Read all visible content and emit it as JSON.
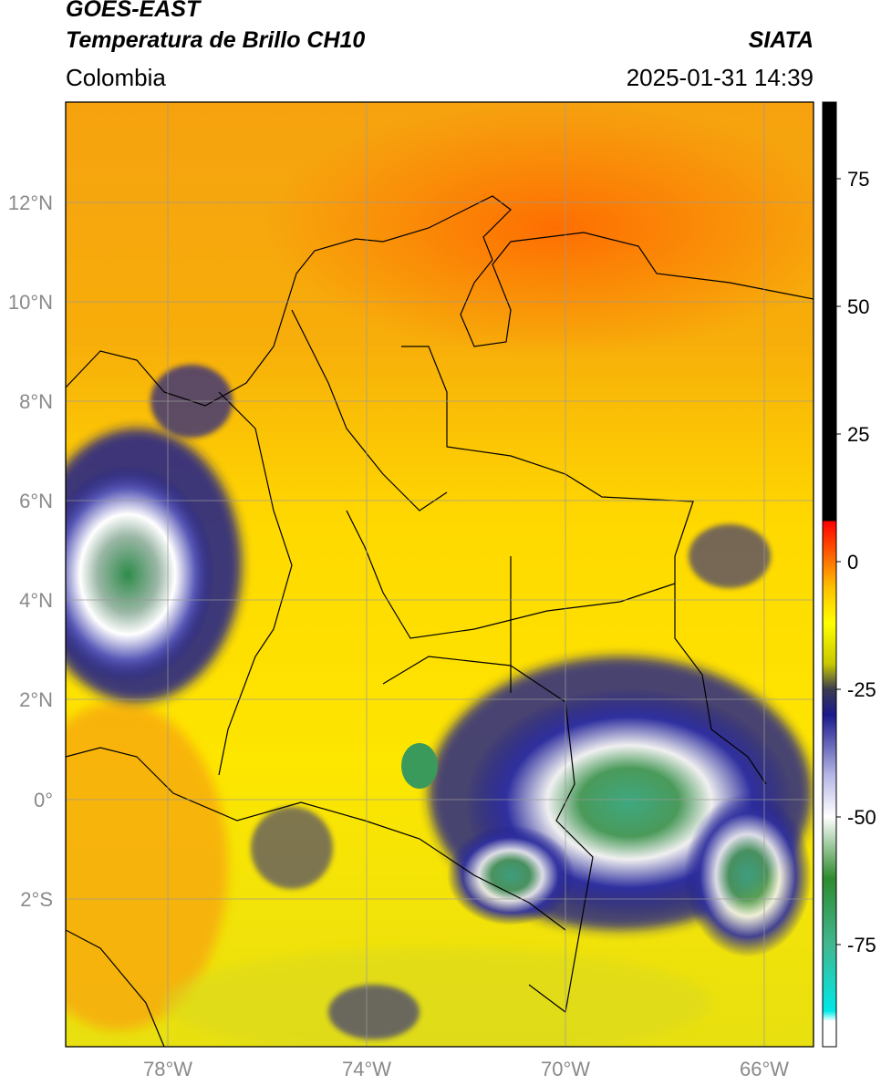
{
  "header": {
    "satellite": "GOES-EAST",
    "product": "Temperatura de Brillo CH10",
    "region": "Colombia",
    "agency": "SIATA",
    "datetime": "2025-01-31 14:39"
  },
  "map": {
    "lon_range": [
      -80,
      -65
    ],
    "lat_range": [
      -5.0,
      14.0
    ],
    "lat_ticks": [
      "12°N",
      "10°N",
      "8°N",
      "6°N",
      "4°N",
      "2°N",
      "0°",
      "2°S"
    ],
    "lon_ticks": [
      "78°W",
      "74°W",
      "70°W",
      "66°W"
    ],
    "colors": {
      "warm": "#f59d0c",
      "hot": "#ff6a00",
      "yellow": "#ffee00",
      "cold_blue": "#1a1a8c",
      "cold_white": "#ffffff",
      "cold_green": "#3a9a5c"
    }
  },
  "colorbar": {
    "ticks": [
      "75",
      "50",
      "25",
      "0",
      "-25",
      "-50",
      "-75"
    ],
    "stops": [
      {
        "value": 90,
        "color": "#000000"
      },
      {
        "value": 8,
        "color": "#000000"
      },
      {
        "value": 7.9,
        "color": "#ff0000"
      },
      {
        "value": -5,
        "color": "#ffc000"
      },
      {
        "value": -12,
        "color": "#ffff00"
      },
      {
        "value": -20,
        "color": "#c8c800"
      },
      {
        "value": -25,
        "color": "#3c3c50"
      },
      {
        "value": -30,
        "color": "#1a1a8c"
      },
      {
        "value": -42,
        "color": "#b8b8e8"
      },
      {
        "value": -50,
        "color": "#ffffff"
      },
      {
        "value": -62,
        "color": "#2e8b2e"
      },
      {
        "value": -75,
        "color": "#40b890"
      },
      {
        "value": -88,
        "color": "#00e8e8"
      },
      {
        "value": -90,
        "color": "#ffffff"
      },
      {
        "value": -95,
        "color": "#ffffff"
      }
    ]
  }
}
